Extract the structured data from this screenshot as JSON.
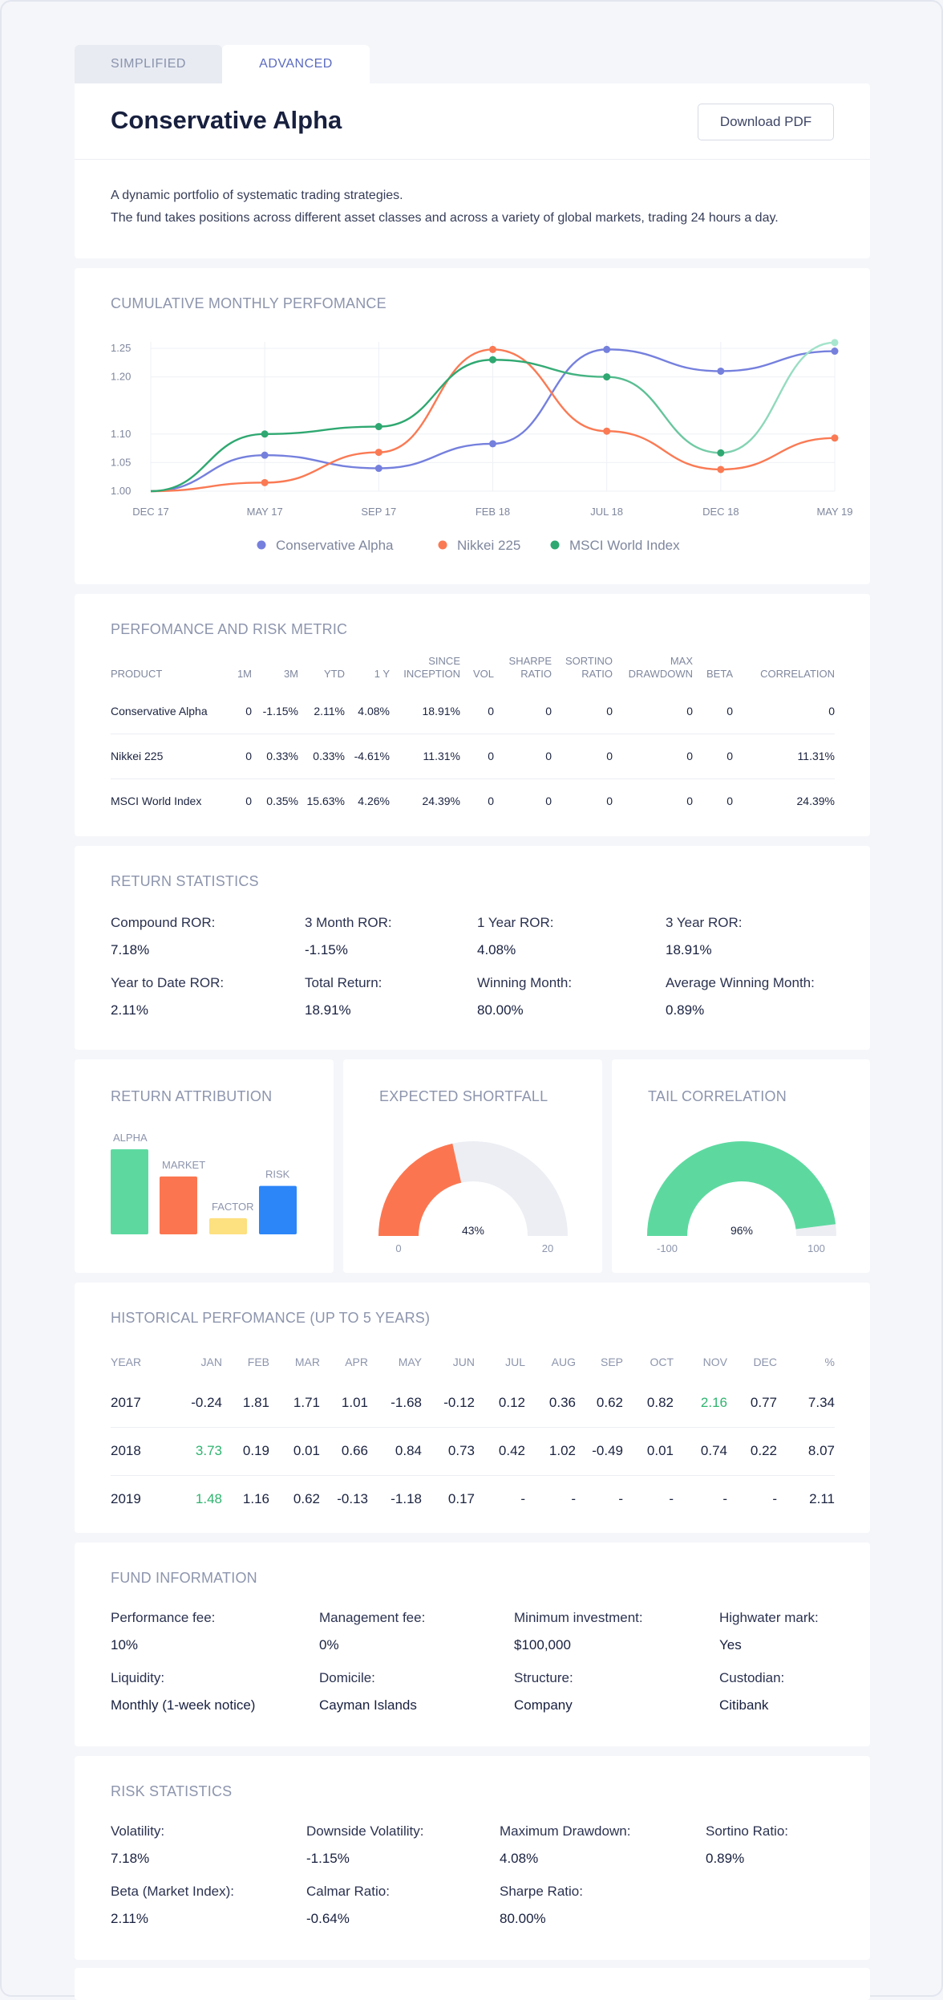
{
  "tabs": [
    {
      "label": "SIMPLIFIED",
      "active": false
    },
    {
      "label": "ADVANCED",
      "active": true
    }
  ],
  "header": {
    "title": "Conservative Alpha",
    "download_label": "Download PDF",
    "desc_line1": "A dynamic portfolio of systematic trading strategies.",
    "desc_line2": "The fund takes positions across different asset classes and across a variety of global markets, trading 24 hours a day."
  },
  "chart": {
    "title": "CUMULATIVE MONTHLY PERFOMANCE"
  },
  "chart_data": {
    "type": "line",
    "title": "CUMULATIVE MONTHLY PERFOMANCE",
    "x": [
      "DEC 17",
      "MAY 17",
      "SEP 17",
      "FEB 18",
      "JUL 18",
      "DEC 18",
      "MAY 19"
    ],
    "ylim": [
      1.0,
      1.25
    ],
    "yticks": [
      "1.00",
      "1.05",
      "1.10",
      "1.20",
      "1.25"
    ],
    "grid": true,
    "legend_position": "bottom",
    "series": [
      {
        "name": "Conservative Alpha",
        "color": "#7580dd",
        "values": [
          1.0,
          1.063,
          1.04,
          1.083,
          1.248,
          1.21,
          1.245
        ]
      },
      {
        "name": "Nikkei 225",
        "color": "#fa7a54",
        "values": [
          1.0,
          1.015,
          1.068,
          1.248,
          1.105,
          1.038,
          1.093
        ]
      },
      {
        "name": "MSCI World Index",
        "color": "#2fa871",
        "end_color": "#a8e6cf",
        "values": [
          1.0,
          1.1,
          1.113,
          1.23,
          1.2,
          1.067,
          1.26
        ]
      }
    ]
  },
  "perf": {
    "title": "PERFOMANCE AND RISK METRIC",
    "columns": [
      "PRODUCT",
      "1M",
      "3M",
      "YTD",
      "1 Y",
      "SINCE INCEPTION",
      "VOL",
      "SHARPE RATIO",
      "SORTINO RATIO",
      "MAX DRAWDOWN",
      "BETA",
      "CORRELATION"
    ],
    "rows": [
      [
        "Conservative Alpha",
        "0",
        "-1.15%",
        "2.11%",
        "4.08%",
        "18.91%",
        "0",
        "0",
        "0",
        "0",
        "0",
        "0"
      ],
      [
        "Nikkei 225",
        "0",
        "0.33%",
        "0.33%",
        "-4.61%",
        "11.31%",
        "0",
        "0",
        "0",
        "0",
        "0",
        "11.31%"
      ],
      [
        "MSCI World Index",
        "0",
        "0.35%",
        "15.63%",
        "4.26%",
        "24.39%",
        "0",
        "0",
        "0",
        "0",
        "0",
        "24.39%"
      ]
    ]
  },
  "return_stats": {
    "title": "RETURN STATISTICS",
    "items": [
      {
        "label": "Compound ROR:",
        "value": "7.18%"
      },
      {
        "label": "3 Month ROR:",
        "value": "-1.15%"
      },
      {
        "label": "1 Year ROR:",
        "value": "4.08%"
      },
      {
        "label": "3 Year ROR:",
        "value": "18.91%"
      },
      {
        "label": "Year to Date ROR:",
        "value": "2.11%"
      },
      {
        "label": "Total Return:",
        "value": "18.91%"
      },
      {
        "label": "Winning Month:",
        "value": "80.00%"
      },
      {
        "label": "Average Winning Month:",
        "value": "0.89%"
      }
    ]
  },
  "attribution": {
    "title": "RETURN ATTRIBUTION",
    "bars": [
      {
        "label": "ALPHA",
        "value": 1.0,
        "color": "#5dd9a0"
      },
      {
        "label": "MARKET",
        "value": 0.68,
        "color": "#fb7650"
      },
      {
        "label": "FACTOR",
        "value": 0.19,
        "color": "#fde07f"
      },
      {
        "label": "RISK",
        "value": 0.57,
        "color": "#2d86f8"
      }
    ]
  },
  "shortfall": {
    "title": "EXPECTED SHORTFALL",
    "value_label": "43%",
    "fraction": 0.43,
    "min": "0",
    "max": "20",
    "fill": "#fb7650"
  },
  "tail": {
    "title": "TAIL CORRELATION",
    "value_label": "96%",
    "fraction": 0.96,
    "min": "-100",
    "max": "100",
    "fill": "#5dd9a0"
  },
  "history": {
    "title": "HISTORICAL PERFOMANCE (UP TO 5 YEARS)",
    "columns": [
      "YEAR",
      "JAN",
      "FEB",
      "MAR",
      "APR",
      "MAY",
      "JUN",
      "JUL",
      "AUG",
      "SEP",
      "OCT",
      "NOV",
      "DEC",
      "%"
    ],
    "rows": [
      [
        "2017",
        "-0.24",
        "1.81",
        "1.71",
        "1.01",
        "-1.68",
        "-0.12",
        "0.12",
        "0.36",
        "0.62",
        "0.82",
        "2.16",
        "0.77",
        "7.34"
      ],
      [
        "2018",
        "3.73",
        "0.19",
        "0.01",
        "0.66",
        "0.84",
        "0.73",
        "0.42",
        "1.02",
        "-0.49",
        "0.01",
        "0.74",
        "0.22",
        "8.07"
      ],
      [
        "2019",
        "1.48",
        "1.16",
        "0.62",
        "-0.13",
        "-1.18",
        "0.17",
        "-",
        "-",
        "-",
        "-",
        "-",
        "-",
        "2.11"
      ]
    ],
    "highlight": [
      [
        0,
        11
      ],
      [
        1,
        1
      ],
      [
        2,
        1
      ]
    ]
  },
  "fund_info": {
    "title": "FUND INFORMATION",
    "items": [
      {
        "label": "Performance fee:",
        "value": "10%"
      },
      {
        "label": "Management fee:",
        "value": "0%"
      },
      {
        "label": "Minimum investment:",
        "value": "$100,000"
      },
      {
        "label": "Highwater mark:",
        "value": "Yes"
      },
      {
        "label": "Liquidity:",
        "value": "Monthly (1-week notice)"
      },
      {
        "label": "Domicile:",
        "value": "Cayman Islands"
      },
      {
        "label": "Structure:",
        "value": "Company"
      },
      {
        "label": "Custodian:",
        "value": "Citibank"
      }
    ]
  },
  "risk_stats": {
    "title": "RISK STATISTICS",
    "items": [
      {
        "label": "Volatility:",
        "value": "7.18%"
      },
      {
        "label": "Downside Volatility:",
        "value": "-1.15%"
      },
      {
        "label": "Maximum Drawdown:",
        "value": "4.08%"
      },
      {
        "label": "Sortino Ratio:",
        "value": "0.89%"
      },
      {
        "label": "Beta (Market Index):",
        "value": "2.11%"
      },
      {
        "label": "Calmar Ratio:",
        "value": "-0.64%"
      },
      {
        "label": "Sharpe Ratio:",
        "value": "80.00%"
      }
    ]
  }
}
